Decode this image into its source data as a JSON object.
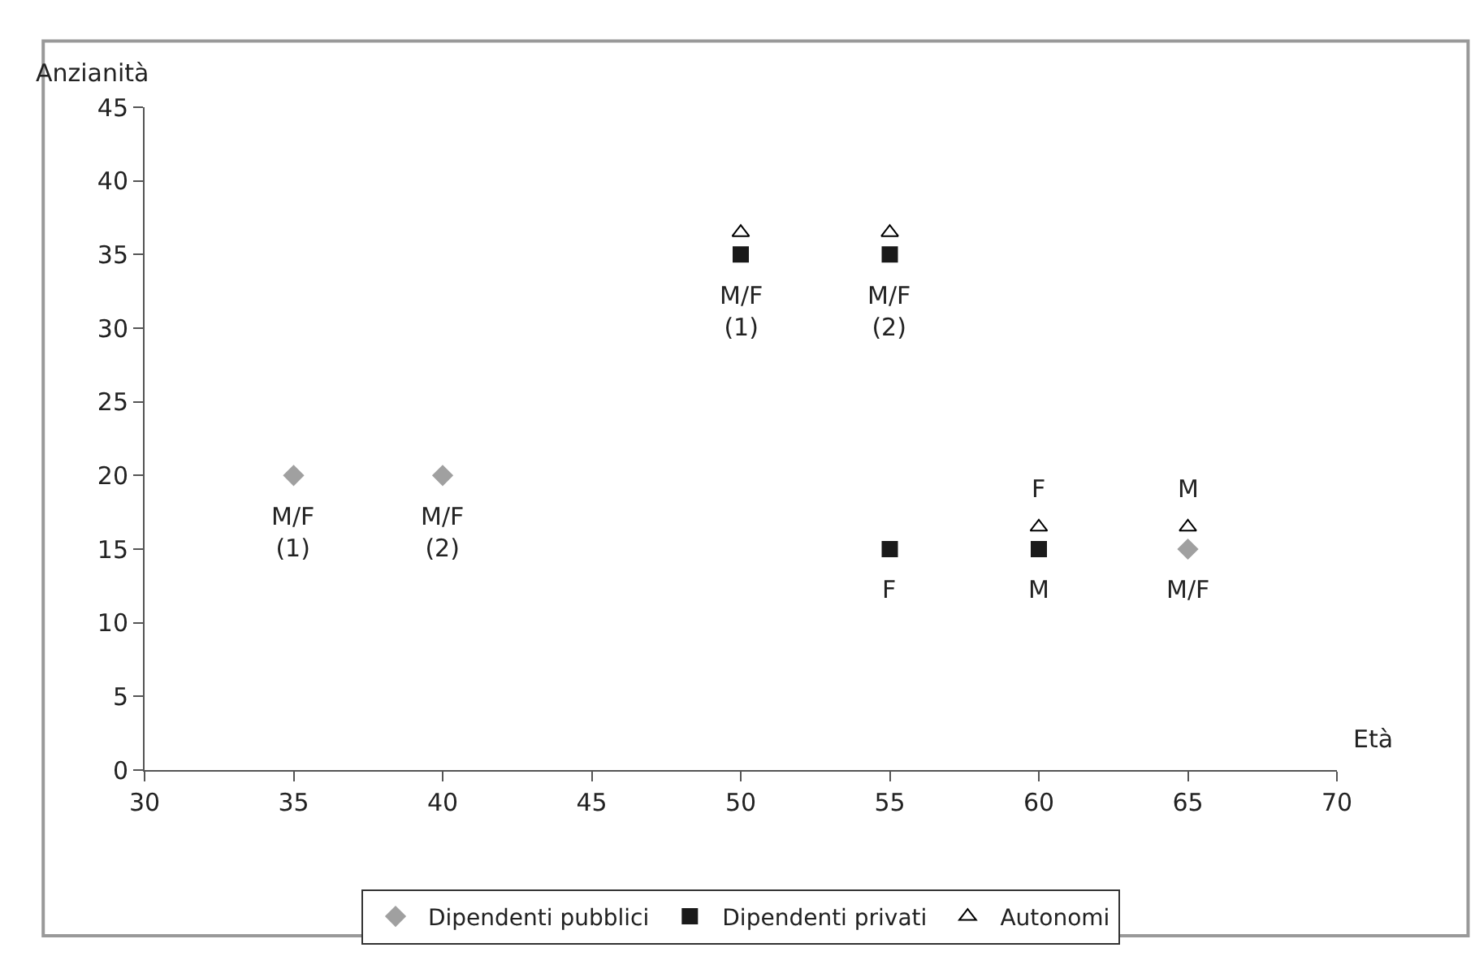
{
  "chart_data": {
    "type": "scatter",
    "xlabel": "Età",
    "ylabel": "Anzianità",
    "xlim": [
      30,
      70
    ],
    "xticks": [
      30,
      35,
      40,
      45,
      50,
      55,
      60,
      65,
      70
    ],
    "ylim": [
      0,
      45
    ],
    "yticks": [
      0,
      5,
      10,
      15,
      20,
      25,
      30,
      35,
      40,
      45
    ],
    "legend": "bottom",
    "series": [
      {
        "name": "Dipendenti pubblici",
        "color": "#a0a0a0",
        "marker": "diamond",
        "x": [
          35,
          40,
          65
        ],
        "values": [
          20,
          20,
          15
        ]
      },
      {
        "name": "Dipendenti privati",
        "color": "#1a1a1a",
        "marker": "square",
        "x": [
          50,
          55,
          55,
          60
        ],
        "values": [
          35,
          35,
          15,
          15
        ]
      },
      {
        "name": "Autonomi",
        "color": "#000000",
        "marker": "triangle",
        "x": [
          50,
          55,
          60,
          65
        ],
        "values": [
          36.5,
          36.5,
          16.5,
          16.5
        ]
      }
    ],
    "annotations": [
      {
        "text": "M/F\n(1)",
        "x": 35,
        "y": 20
      },
      {
        "text": "M/F\n(2)",
        "x": 40,
        "y": 20
      },
      {
        "text": "M/F\n(1)",
        "x": 50,
        "y": 35
      },
      {
        "text": "M/F\n(2)",
        "x": 55,
        "y": 35
      },
      {
        "text": "F",
        "x": 55,
        "y": 15
      },
      {
        "text": "F",
        "x": 60,
        "y": 16.5
      },
      {
        "text": "M",
        "x": 60,
        "y": 15
      },
      {
        "text": "M",
        "x": 65,
        "y": 16.5
      },
      {
        "text": "M/F",
        "x": 65,
        "y": 15
      }
    ]
  }
}
